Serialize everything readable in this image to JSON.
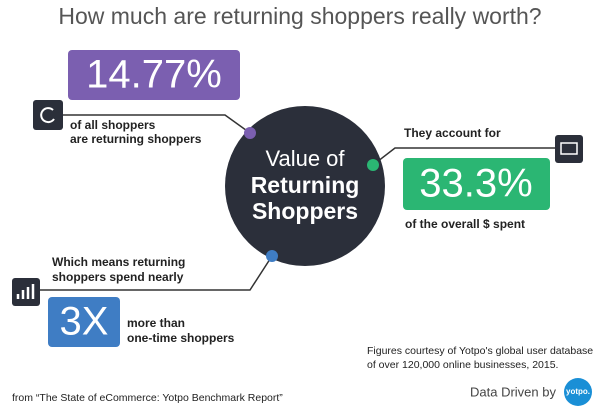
{
  "title": "How much are returning shoppers really worth?",
  "center": {
    "lines": [
      "Value of",
      "Returning",
      "Shoppers"
    ]
  },
  "stat_returning": {
    "value_text": "14.77%",
    "caption": [
      "of all shoppers",
      "are returning shoppers"
    ]
  },
  "stat_spent": {
    "intro": "They account for",
    "value_text": "33.3%",
    "caption": "of the overall $ spent"
  },
  "stat_spend": {
    "intro": [
      "Which means returning",
      "shoppers spend nearly"
    ],
    "value_text": "3X",
    "caption": [
      "more than",
      "one-time shoppers"
    ]
  },
  "credit": [
    "Figures courtesy of Yotpo's global user database",
    "of over 120,000 online businesses, 2015."
  ],
  "source": "from “The State of eCommerce:  Yotpo Benchmark Report”",
  "brand": {
    "label": "Data Driven by",
    "logo": "yotpo."
  }
}
